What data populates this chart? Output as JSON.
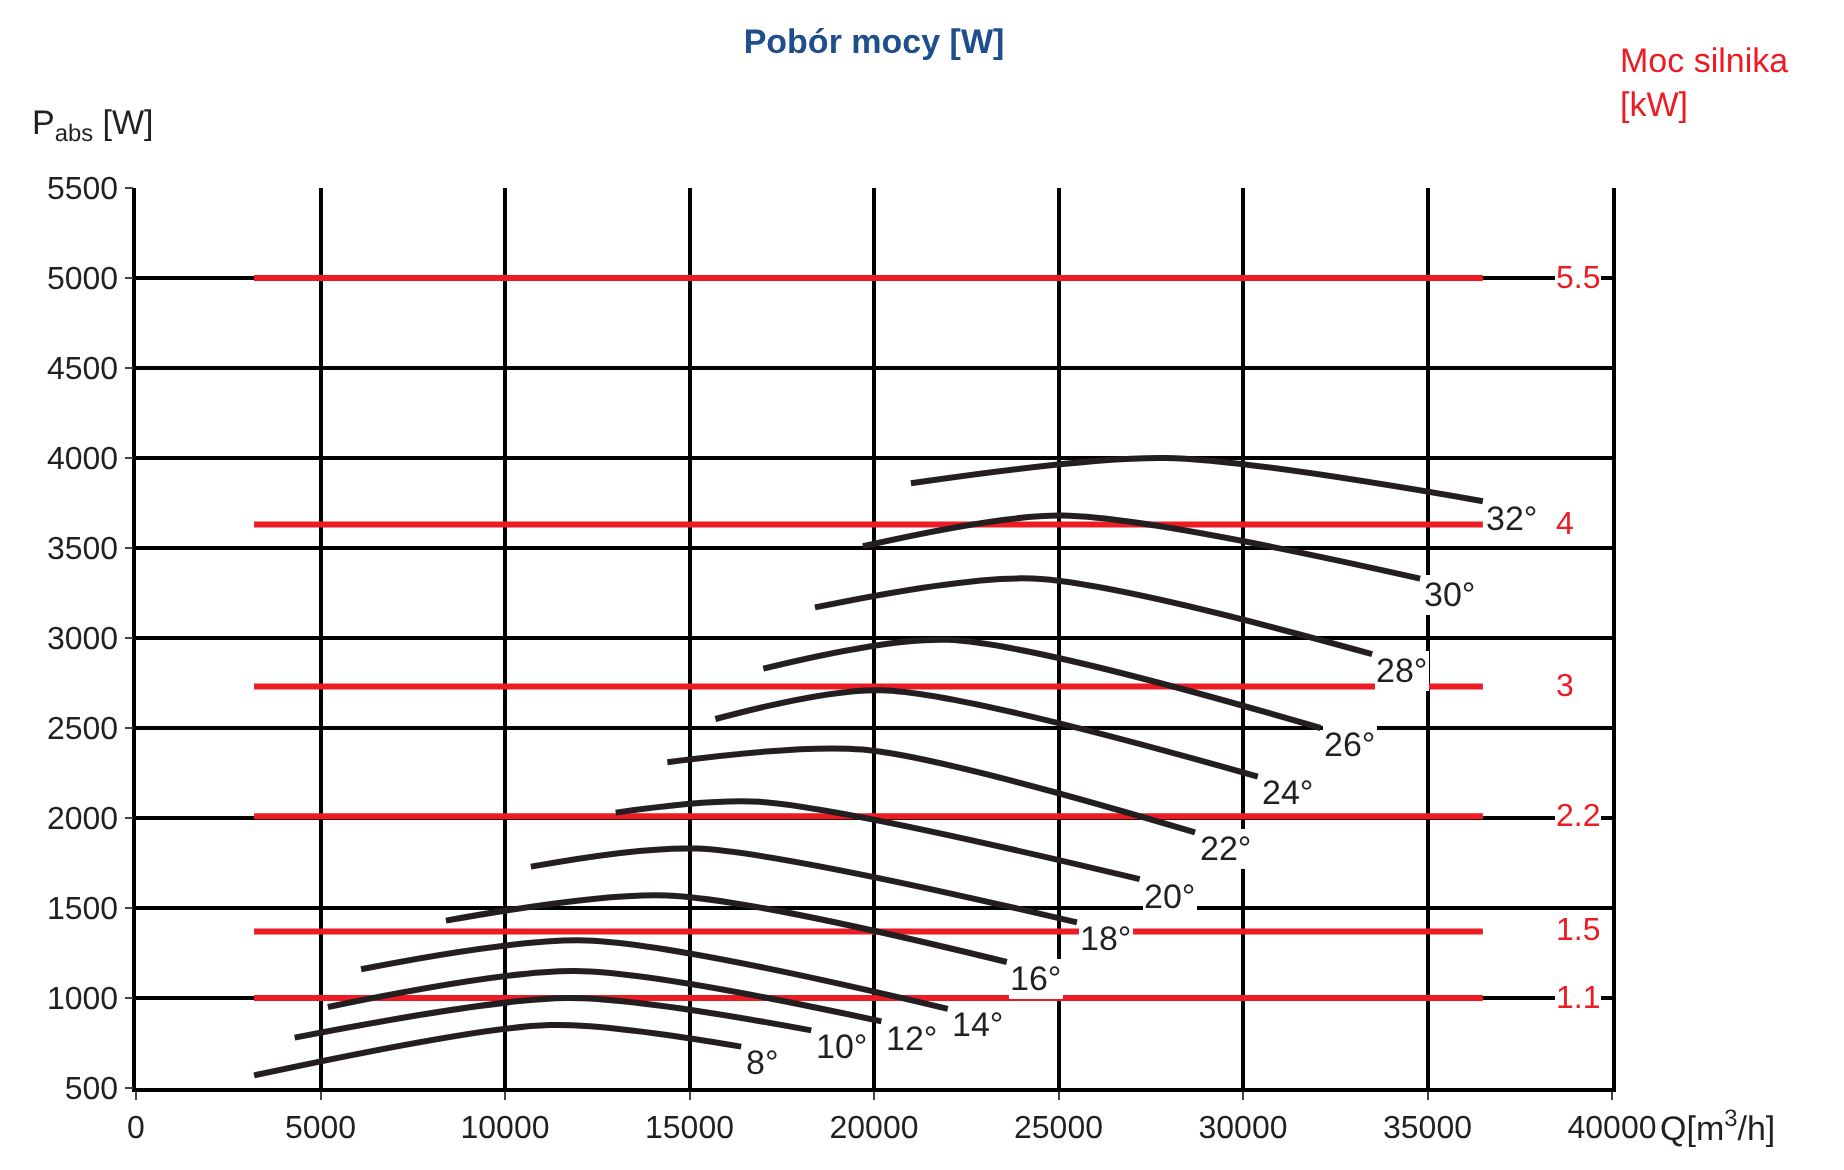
{
  "chart_data": {
    "type": "line",
    "title": "Pobór mocy [W]",
    "xlabel": "Q[m$^{3}$/h]",
    "ylabel": "P$_{abs}$ [W]",
    "y2label": "Moc silnika\n[kW]",
    "xlim": [
      0,
      40000
    ],
    "xticks": [
      0,
      5000,
      10000,
      15000,
      20000,
      25000,
      30000,
      35000,
      40000
    ],
    "ylim": [
      500,
      5500
    ],
    "yticks": [
      500,
      1000,
      1500,
      2000,
      2500,
      3000,
      3500,
      4000,
      4500,
      5000,
      5500
    ],
    "grid": true,
    "legend": false,
    "marker": "none",
    "line_style": "solid",
    "series": [
      {
        "name": "5.5",
        "color": "#ed1c24",
        "x": [
          3200,
          36500
        ],
        "values": [
          5000,
          5000
        ]
      },
      {
        "name": "4",
        "color": "#ed1c24",
        "x": [
          3200,
          36500
        ],
        "values": [
          3630,
          3630
        ]
      },
      {
        "name": "3",
        "color": "#ed1c24",
        "x": [
          3200,
          36500
        ],
        "values": [
          2730,
          2730
        ]
      },
      {
        "name": "2.2",
        "color": "#ed1c24",
        "x": [
          3200,
          36500
        ],
        "values": [
          2010,
          2010
        ]
      },
      {
        "name": "1.5",
        "color": "#ed1c24",
        "x": [
          3200,
          36500
        ],
        "values": [
          1370,
          1370
        ]
      },
      {
        "name": "1.1",
        "color": "#ed1c24",
        "x": [
          3200,
          36500
        ],
        "values": [
          1000,
          1000
        ]
      },
      {
        "name": "8°",
        "color": "#231f20",
        "x": [
          3200,
          11200,
          16400
        ],
        "values": [
          570,
          850,
          730
        ]
      },
      {
        "name": "10°",
        "color": "#231f20",
        "x": [
          4300,
          11700,
          18300
        ],
        "values": [
          780,
          1000,
          820
        ]
      },
      {
        "name": "12°",
        "color": "#231f20",
        "x": [
          5200,
          11900,
          20200
        ],
        "values": [
          950,
          1150,
          870
        ]
      },
      {
        "name": "14°",
        "color": "#231f20",
        "x": [
          6100,
          12200,
          22000
        ],
        "values": [
          1160,
          1320,
          940
        ]
      },
      {
        "name": "16°",
        "color": "#231f20",
        "x": [
          8400,
          14400,
          23600
        ],
        "values": [
          1430,
          1570,
          1200
        ]
      },
      {
        "name": "18°",
        "color": "#231f20",
        "x": [
          10700,
          15200,
          25500
        ],
        "values": [
          1730,
          1830,
          1420
        ]
      },
      {
        "name": "20°",
        "color": "#231f20",
        "x": [
          13000,
          16900,
          27200
        ],
        "values": [
          2030,
          2090,
          1660
        ]
      },
      {
        "name": "22°",
        "color": "#231f20",
        "x": [
          14400,
          19700,
          28700
        ],
        "values": [
          2310,
          2380,
          1920
        ]
      },
      {
        "name": "24°",
        "color": "#231f20",
        "x": [
          15700,
          20200,
          30400
        ],
        "values": [
          2550,
          2710,
          2230
        ]
      },
      {
        "name": "26°",
        "color": "#231f20",
        "x": [
          17000,
          22000,
          32100
        ],
        "values": [
          2830,
          2990,
          2500
        ]
      },
      {
        "name": "28°",
        "color": "#231f20",
        "x": [
          18400,
          24300,
          33500
        ],
        "values": [
          3170,
          3330,
          2910
        ]
      },
      {
        "name": "30°",
        "color": "#231f20",
        "x": [
          19700,
          25100,
          34800
        ],
        "values": [
          3510,
          3680,
          3330
        ]
      },
      {
        "name": "32°",
        "color": "#231f20",
        "x": [
          21000,
          27900,
          36500
        ],
        "values": [
          3860,
          4000,
          3760
        ]
      }
    ]
  }
}
